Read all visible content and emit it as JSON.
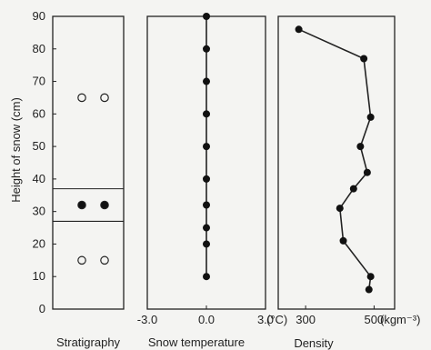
{
  "chart_data": [
    {
      "type": "stratigraphy",
      "xlabel": "Stratigraphy",
      "ylabel": "Height of snow (cm)",
      "ylim": [
        0,
        90
      ],
      "yticks": [
        "0",
        "10",
        "20",
        "30",
        "40",
        "50",
        "60",
        "70",
        "80",
        "90"
      ],
      "layer_boundaries_cm": [
        27,
        37
      ],
      "layers": [
        {
          "bottom_cm": 0,
          "top_cm": 27,
          "symbol": "open-circle",
          "marker_y_cm": 15
        },
        {
          "bottom_cm": 27,
          "top_cm": 37,
          "symbol": "filled-circle",
          "marker_y_cm": 32
        },
        {
          "bottom_cm": 37,
          "top_cm": 90,
          "symbol": "open-circle",
          "marker_y_cm": 65
        }
      ]
    },
    {
      "type": "line",
      "xlabel": "Snow temperature",
      "xlim": [
        -3.0,
        3.0
      ],
      "xticks": [
        "-3.0",
        "0.0",
        "3.0"
      ],
      "xunit": "(°C)",
      "ylim": [
        0,
        90
      ],
      "series": [
        {
          "x": [
            0.0,
            0.0,
            0.0,
            0.0,
            0.0,
            0.0,
            0.0,
            0.0,
            0.0,
            0.0
          ],
          "y": [
            10,
            20,
            25,
            32,
            40,
            50,
            60,
            70,
            80,
            90
          ]
        }
      ]
    },
    {
      "type": "line",
      "xlabel": "Density",
      "xlim": [
        220,
        560
      ],
      "xticks": [
        "300",
        "500"
      ],
      "xunit": "(kgm⁻³)",
      "ylim": [
        0,
        90
      ],
      "series": [
        {
          "x": [
            280,
            470,
            490,
            460,
            480,
            440,
            400,
            410,
            490,
            485
          ],
          "y": [
            86,
            77,
            59,
            50,
            42,
            37,
            31,
            21,
            10,
            6
          ]
        }
      ]
    }
  ]
}
